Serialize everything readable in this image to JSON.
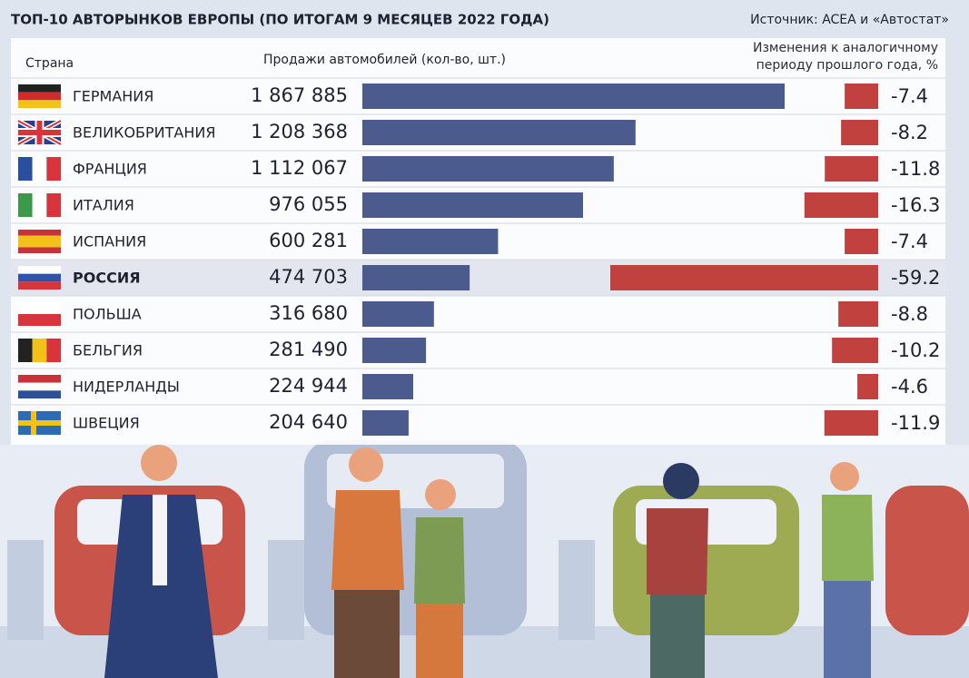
{
  "chart_data": {
    "type": "bar",
    "title": "ТОП-10 АВТОРЫНКОВ ЕВРОПЫ (ПО ИТОГАМ 9 МЕСЯЦЕВ 2022 ГОДА)",
    "source": "Источник: ACEA и «Автостат»",
    "category_label": "Страна",
    "categories": [
      "ГЕРМАНИЯ",
      "ВЕЛИКОБРИТАНИЯ",
      "ФРАНЦИЯ",
      "ИТАЛИЯ",
      "ИСПАНИЯ",
      "РОССИЯ",
      "ПОЛЬША",
      "БЕЛЬГИЯ",
      "НИДЕРЛАНДЫ",
      "ШВЕЦИЯ"
    ],
    "highlight": "РОССИЯ",
    "series": [
      {
        "name": "Продажи автомобилей (кол-во, шт.)",
        "color": "#4b5b8e",
        "values": [
          1867885,
          1208368,
          1112067,
          976055,
          600281,
          474703,
          316680,
          281490,
          224944,
          204640
        ],
        "value_labels": [
          "1 867 885",
          "1 208 368",
          "1 112 067",
          "976 055",
          "600 281",
          "474 703",
          "316 680",
          "281 490",
          "224 944",
          "204 640"
        ]
      },
      {
        "name": "Изменения к аналогичному периоду прошлого года, %",
        "color": "#c1413f",
        "values": [
          -7.4,
          -8.2,
          -11.8,
          -16.3,
          -7.4,
          -59.2,
          -8.8,
          -10.2,
          -4.6,
          -11.9
        ]
      }
    ]
  }
}
